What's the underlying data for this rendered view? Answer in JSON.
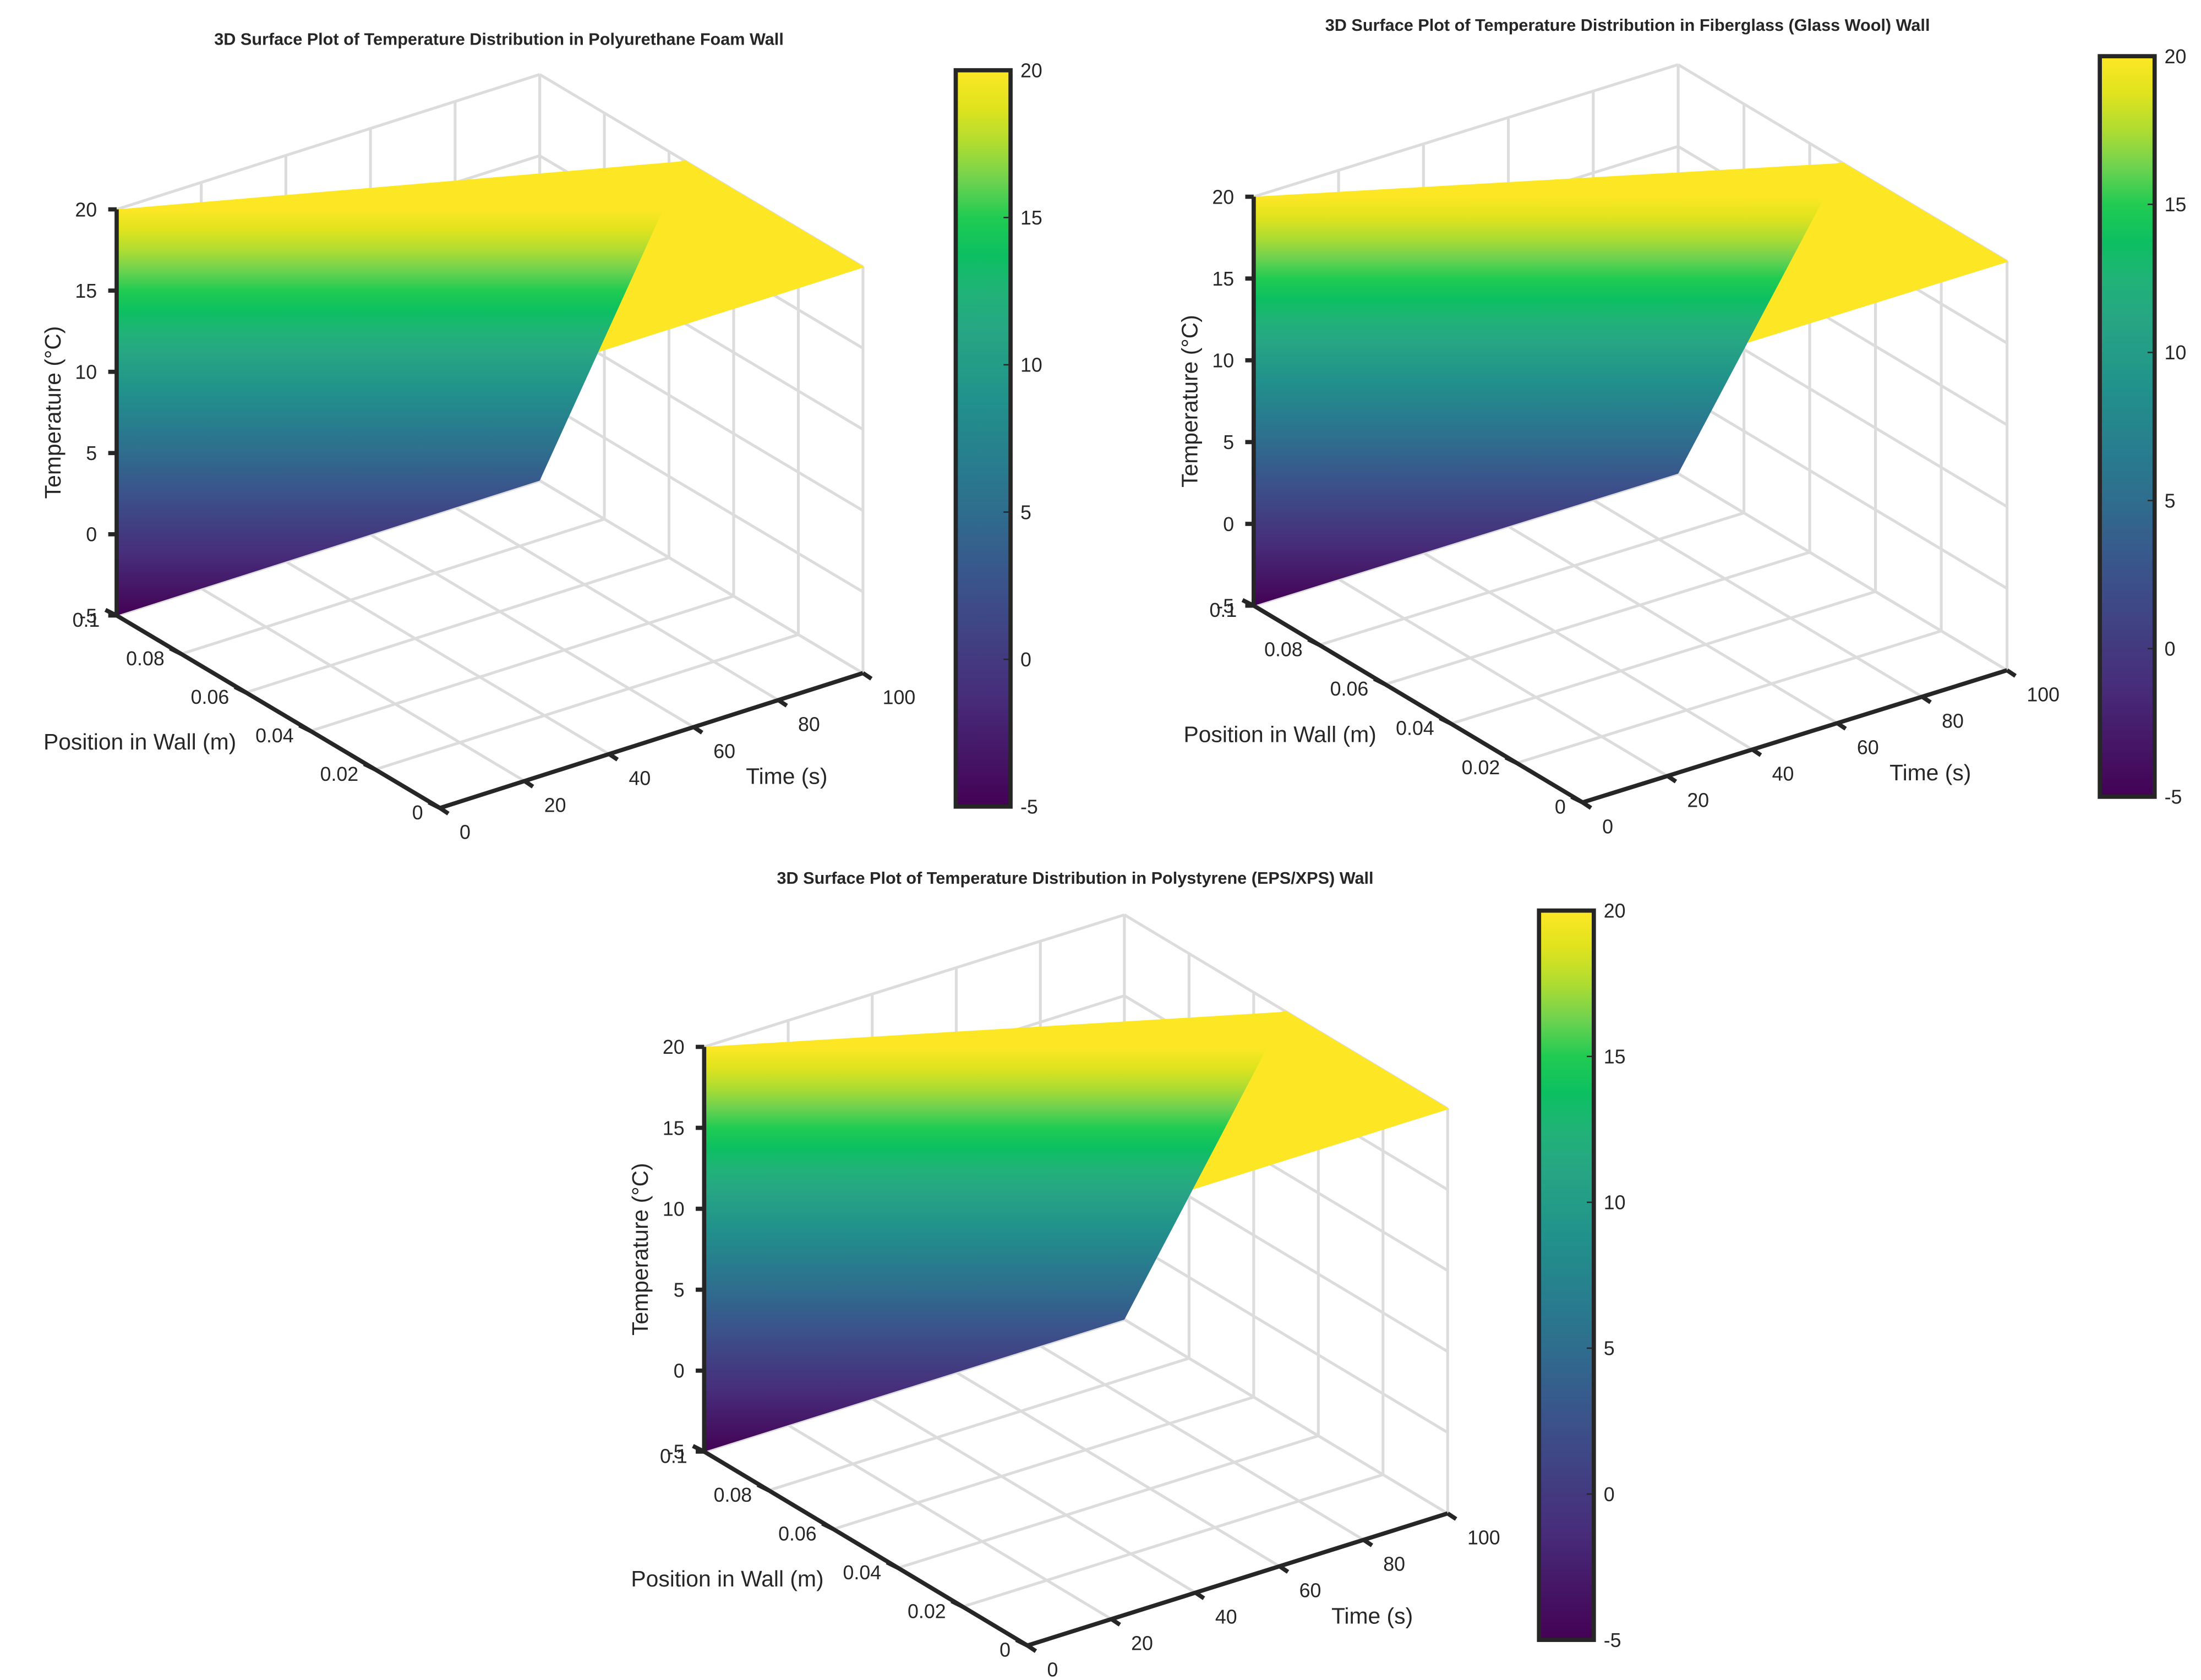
{
  "colormap": {
    "name": "viridis-like",
    "stops": [
      {
        "v": 0.0,
        "color": "#440154"
      },
      {
        "v": 0.15,
        "color": "#472d7b"
      },
      {
        "v": 0.3,
        "color": "#3b528b"
      },
      {
        "v": 0.42,
        "color": "#2c728e"
      },
      {
        "v": 0.55,
        "color": "#21918c"
      },
      {
        "v": 0.68,
        "color": "#28ae80"
      },
      {
        "v": 0.78,
        "color": "#00c853"
      },
      {
        "v": 0.86,
        "color": "#7ed34f"
      },
      {
        "v": 0.93,
        "color": "#d4e21a"
      },
      {
        "v": 1.0,
        "color": "#fde725"
      }
    ]
  },
  "chart_data": [
    {
      "type": "surface3d",
      "title": "3D Surface Plot of Temperature Distribution in Polyurethane Foam Wall",
      "xlabel": "Time (s)",
      "ylabel": "Position in Wall (m)",
      "zlabel": "Temperature (°C)",
      "xlim": [
        0,
        100
      ],
      "ylim": [
        0,
        0.1
      ],
      "zlim": [
        -5,
        20
      ],
      "xticks": [
        "0",
        "20",
        "40",
        "60",
        "80",
        "100"
      ],
      "yticks": [
        "0",
        "0.02",
        "0.04",
        "0.06",
        "0.08",
        "0.1"
      ],
      "zticks": [
        "-5",
        "0",
        "5",
        "10",
        "15",
        "20"
      ],
      "colorbar_ticks": [
        "-5",
        "0",
        "5",
        "10",
        "15",
        "20"
      ],
      "clim": [
        -5,
        20
      ],
      "surface": {
        "initial_temperature": 20,
        "outer_surface_temperature": -5,
        "boundary_position_m": 0.1,
        "penetration_depth_at_t100_m": 0.045
      }
    },
    {
      "type": "surface3d",
      "title": "3D Surface Plot of Temperature Distribution in Fiberglass (Glass Wool) Wall",
      "xlabel": "Time (s)",
      "ylabel": "Position in Wall (m)",
      "zlabel": "Temperature (°C)",
      "xlim": [
        0,
        100
      ],
      "ylim": [
        0,
        0.1
      ],
      "zlim": [
        -5,
        20
      ],
      "xticks": [
        "0",
        "20",
        "40",
        "60",
        "80",
        "100"
      ],
      "yticks": [
        "0",
        "0.02",
        "0.04",
        "0.06",
        "0.08",
        "0.1"
      ],
      "zticks": [
        "-5",
        "0",
        "5",
        "10",
        "15",
        "20"
      ],
      "colorbar_ticks": [
        "-5",
        "0",
        "5",
        "10",
        "15",
        "20"
      ],
      "clim": [
        -5,
        20
      ],
      "surface": {
        "initial_temperature": 20,
        "outer_surface_temperature": -5,
        "boundary_position_m": 0.1,
        "penetration_depth_at_t100_m": 0.05
      }
    },
    {
      "type": "surface3d",
      "title": "3D Surface Plot of Temperature Distribution in Polystyrene (EPS/XPS) Wall",
      "xlabel": "Time (s)",
      "ylabel": "Position in Wall (m)",
      "zlabel": "Temperature (°C)",
      "xlim": [
        0,
        100
      ],
      "ylim": [
        0,
        0.1
      ],
      "zlim": [
        -5,
        20
      ],
      "xticks": [
        "0",
        "20",
        "40",
        "60",
        "80",
        "100"
      ],
      "yticks": [
        "0",
        "0.02",
        "0.04",
        "0.06",
        "0.08",
        "0.1"
      ],
      "zticks": [
        "-5",
        "0",
        "5",
        "10",
        "15",
        "20"
      ],
      "colorbar_ticks": [
        "-5",
        "0",
        "5",
        "10",
        "15",
        "20"
      ],
      "clim": [
        -5,
        20
      ],
      "surface": {
        "initial_temperature": 20,
        "outer_surface_temperature": -5,
        "boundary_position_m": 0.1,
        "penetration_depth_at_t100_m": 0.05
      }
    }
  ]
}
